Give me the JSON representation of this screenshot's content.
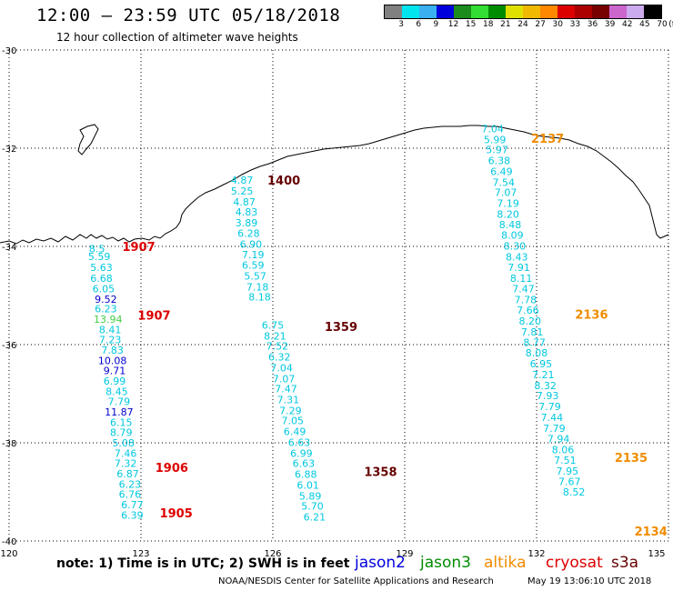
{
  "header": {
    "title": "12:00 — 23:59 UTC 05/18/2018",
    "subtitle": "12 hour collection of altimeter wave heights"
  },
  "legend": {
    "unit": "(ft)",
    "colors": [
      "#808080",
      "#00e5ee",
      "#3ab0f0",
      "#0000dd",
      "#1c8c1c",
      "#33dd33",
      "#008c00",
      "#e0e000",
      "#f0b800",
      "#ff8800",
      "#dd0000",
      "#aa0000",
      "#770000",
      "#cc66cc",
      "#ccaaee",
      "#000000"
    ],
    "labels": [
      "3",
      "6",
      "9",
      "12",
      "15",
      "18",
      "21",
      "24",
      "27",
      "30",
      "33",
      "36",
      "39",
      "42",
      "45",
      "70"
    ]
  },
  "map": {
    "lon_range": [
      120,
      135
    ],
    "lat_range": [
      -40,
      -30
    ],
    "lon_ticks": [
      "120",
      "123",
      "126",
      "129",
      "132",
      "135"
    ],
    "lat_ticks": [
      "-30",
      "-32",
      "-34",
      "-36",
      "-38",
      "-40"
    ]
  },
  "tracks": [
    {
      "name": "track-west",
      "color": "#00c8e0",
      "points": [
        {
          "lon": 122.0,
          "lat": -34.05,
          "v": "8.5"
        },
        {
          "lon": 122.05,
          "lat": -34.2,
          "v": "5.59"
        },
        {
          "lon": 122.1,
          "lat": -34.43,
          "v": "5.63"
        },
        {
          "lon": 122.1,
          "lat": -34.65,
          "v": "6.68"
        },
        {
          "lon": 122.15,
          "lat": -34.86,
          "v": "6.05"
        },
        {
          "lon": 122.2,
          "lat": -35.07,
          "v": "9.52",
          "c": "#0000cc"
        },
        {
          "lon": 122.2,
          "lat": -35.27,
          "v": "6.23"
        },
        {
          "lon": 122.25,
          "lat": -35.48,
          "v": "13.94",
          "c": "#44cc44"
        },
        {
          "lon": 122.3,
          "lat": -35.69,
          "v": "8.41"
        },
        {
          "lon": 122.3,
          "lat": -35.9,
          "v": "7.23"
        },
        {
          "lon": 122.35,
          "lat": -36.11,
          "v": "7.83"
        },
        {
          "lon": 122.35,
          "lat": -36.32,
          "v": "10.08",
          "c": "#0000cc"
        },
        {
          "lon": 122.4,
          "lat": -36.53,
          "v": "9.71",
          "c": "#0000cc"
        },
        {
          "lon": 122.4,
          "lat": -36.74,
          "v": "6.99"
        },
        {
          "lon": 122.45,
          "lat": -36.95,
          "v": "8.45"
        },
        {
          "lon": 122.5,
          "lat": -37.16,
          "v": "7.79"
        },
        {
          "lon": 122.5,
          "lat": -37.37,
          "v": "11.87",
          "c": "#0000cc"
        },
        {
          "lon": 122.55,
          "lat": -37.58,
          "v": "6.15"
        },
        {
          "lon": 122.55,
          "lat": -37.79,
          "v": "8.79"
        },
        {
          "lon": 122.6,
          "lat": -38.0,
          "v": "5.08"
        },
        {
          "lon": 122.65,
          "lat": -38.21,
          "v": "7.46"
        },
        {
          "lon": 122.65,
          "lat": -38.42,
          "v": "7.32"
        },
        {
          "lon": 122.7,
          "lat": -38.63,
          "v": "6.87"
        },
        {
          "lon": 122.75,
          "lat": -38.84,
          "v": "6.23"
        },
        {
          "lon": 122.75,
          "lat": -39.05,
          "v": "6.76"
        },
        {
          "lon": 122.8,
          "lat": -39.26,
          "v": "6.77"
        },
        {
          "lon": 122.8,
          "lat": -39.47,
          "v": "6.39"
        }
      ]
    },
    {
      "name": "track-middle",
      "color": "#00c8e0",
      "points": [
        {
          "lon": 125.3,
          "lat": -32.65,
          "v": "4.87"
        },
        {
          "lon": 125.3,
          "lat": -32.87,
          "v": "5.25"
        },
        {
          "lon": 125.35,
          "lat": -33.09,
          "v": "4.87"
        },
        {
          "lon": 125.4,
          "lat": -33.3,
          "v": "4.83"
        },
        {
          "lon": 125.4,
          "lat": -33.52,
          "v": "3.89"
        },
        {
          "lon": 125.45,
          "lat": -33.73,
          "v": "6.28"
        },
        {
          "lon": 125.5,
          "lat": -33.95,
          "v": "6.90"
        },
        {
          "lon": 125.55,
          "lat": -34.17,
          "v": "7.19"
        },
        {
          "lon": 125.55,
          "lat": -34.38,
          "v": "6.59"
        },
        {
          "lon": 125.6,
          "lat": -34.6,
          "v": "5.57"
        },
        {
          "lon": 125.65,
          "lat": -34.82,
          "v": "7.18"
        },
        {
          "lon": 125.7,
          "lat": -35.03,
          "v": "8.18"
        },
        {
          "lon": 126.0,
          "lat": -35.6,
          "v": "6.75"
        },
        {
          "lon": 126.05,
          "lat": -35.82,
          "v": "8.21"
        },
        {
          "lon": 126.1,
          "lat": -36.03,
          "v": "7.52"
        },
        {
          "lon": 126.15,
          "lat": -36.25,
          "v": "6.32"
        },
        {
          "lon": 126.2,
          "lat": -36.47,
          "v": "7.04"
        },
        {
          "lon": 126.25,
          "lat": -36.69,
          "v": "7.07"
        },
        {
          "lon": 126.3,
          "lat": -36.9,
          "v": "7.47"
        },
        {
          "lon": 126.35,
          "lat": -37.12,
          "v": "7.31"
        },
        {
          "lon": 126.4,
          "lat": -37.34,
          "v": "7.29"
        },
        {
          "lon": 126.45,
          "lat": -37.55,
          "v": "7.05"
        },
        {
          "lon": 126.5,
          "lat": -37.77,
          "v": "6.49"
        },
        {
          "lon": 126.6,
          "lat": -37.99,
          "v": "6.63"
        },
        {
          "lon": 126.65,
          "lat": -38.21,
          "v": "6.99"
        },
        {
          "lon": 126.7,
          "lat": -38.42,
          "v": "6.63"
        },
        {
          "lon": 126.75,
          "lat": -38.64,
          "v": "6.88"
        },
        {
          "lon": 126.8,
          "lat": -38.86,
          "v": "6.01"
        },
        {
          "lon": 126.85,
          "lat": -39.08,
          "v": "5.89"
        },
        {
          "lon": 126.9,
          "lat": -39.29,
          "v": "5.70"
        },
        {
          "lon": 126.95,
          "lat": -39.51,
          "v": "6.21"
        }
      ]
    },
    {
      "name": "track-east",
      "color": "#00c8e0",
      "points": [
        {
          "lon": 131.0,
          "lat": -31.6,
          "v": "7.04"
        },
        {
          "lon": 131.05,
          "lat": -31.82,
          "v": "5.99"
        },
        {
          "lon": 131.1,
          "lat": -32.03,
          "v": "5.97"
        },
        {
          "lon": 131.15,
          "lat": -32.25,
          "v": "6.38"
        },
        {
          "lon": 131.2,
          "lat": -32.47,
          "v": "6.49"
        },
        {
          "lon": 131.25,
          "lat": -32.69,
          "v": "7.54"
        },
        {
          "lon": 131.3,
          "lat": -32.9,
          "v": "7.07"
        },
        {
          "lon": 131.35,
          "lat": -33.12,
          "v": "7.19"
        },
        {
          "lon": 131.35,
          "lat": -33.34,
          "v": "8.20"
        },
        {
          "lon": 131.4,
          "lat": -33.56,
          "v": "8.48"
        },
        {
          "lon": 131.45,
          "lat": -33.77,
          "v": "8.09"
        },
        {
          "lon": 131.5,
          "lat": -33.99,
          "v": "8.30"
        },
        {
          "lon": 131.55,
          "lat": -34.21,
          "v": "8.43"
        },
        {
          "lon": 131.6,
          "lat": -34.43,
          "v": "7.91"
        },
        {
          "lon": 131.65,
          "lat": -34.65,
          "v": "8.11"
        },
        {
          "lon": 131.7,
          "lat": -34.86,
          "v": "7.47"
        },
        {
          "lon": 131.75,
          "lat": -35.08,
          "v": "7.78"
        },
        {
          "lon": 131.8,
          "lat": -35.3,
          "v": "7.66"
        },
        {
          "lon": 131.85,
          "lat": -35.52,
          "v": "8.20"
        },
        {
          "lon": 131.9,
          "lat": -35.74,
          "v": "7.81"
        },
        {
          "lon": 131.95,
          "lat": -35.95,
          "v": "8.77"
        },
        {
          "lon": 132.0,
          "lat": -36.17,
          "v": "8.08"
        },
        {
          "lon": 132.1,
          "lat": -36.39,
          "v": "6.95"
        },
        {
          "lon": 132.15,
          "lat": -36.61,
          "v": "7.21"
        },
        {
          "lon": 132.2,
          "lat": -36.83,
          "v": "8.32"
        },
        {
          "lon": 132.25,
          "lat": -37.04,
          "v": "7.93"
        },
        {
          "lon": 132.3,
          "lat": -37.26,
          "v": "7.79"
        },
        {
          "lon": 132.35,
          "lat": -37.48,
          "v": "7.44"
        },
        {
          "lon": 132.4,
          "lat": -37.7,
          "v": "7.79"
        },
        {
          "lon": 132.5,
          "lat": -37.92,
          "v": "7.94"
        },
        {
          "lon": 132.6,
          "lat": -38.14,
          "v": "8.06"
        },
        {
          "lon": 132.65,
          "lat": -38.35,
          "v": "7.51"
        },
        {
          "lon": 132.7,
          "lat": -38.57,
          "v": "7.95"
        },
        {
          "lon": 132.75,
          "lat": -38.79,
          "v": "7.67"
        },
        {
          "lon": 132.85,
          "lat": -39.0,
          "v": "8.52"
        }
      ]
    }
  ],
  "time_labels": [
    {
      "lon": 122.95,
      "lat": -34.0,
      "text": "1907",
      "color": "#dd0000"
    },
    {
      "lon": 123.3,
      "lat": -35.4,
      "text": "1907",
      "color": "#dd0000"
    },
    {
      "lon": 123.7,
      "lat": -38.5,
      "text": "1906",
      "color": "#dd0000"
    },
    {
      "lon": 123.8,
      "lat": -39.43,
      "text": "1905",
      "color": "#dd0000"
    },
    {
      "lon": 126.25,
      "lat": -32.65,
      "text": "1400",
      "color": "#660000"
    },
    {
      "lon": 127.55,
      "lat": -35.63,
      "text": "1359",
      "color": "#660000"
    },
    {
      "lon": 128.45,
      "lat": -38.58,
      "text": "1358",
      "color": "#660000"
    },
    {
      "lon": 132.25,
      "lat": -31.8,
      "text": "2137",
      "color": "#f08c00"
    },
    {
      "lon": 133.25,
      "lat": -35.38,
      "text": "2136",
      "color": "#f08c00"
    },
    {
      "lon": 134.15,
      "lat": -38.3,
      "text": "2135",
      "color": "#f08c00"
    },
    {
      "lon": 134.6,
      "lat": -39.8,
      "text": "2134",
      "color": "#f08c00"
    }
  ],
  "footer": {
    "note": "note:  1) Time is in UTC;  2) SWH is in feet",
    "satellites": [
      {
        "name": "jason2",
        "color": "#0000dd"
      },
      {
        "name": "jason3",
        "color": "#008c00"
      },
      {
        "name": "altika",
        "color": "#f08c00"
      },
      {
        "name": "cryosat",
        "color": "#dd0000"
      },
      {
        "name": "s3a",
        "color": "#660000"
      }
    ],
    "credit": "NOAA/NESDIS Center for Satellite Applications and Research",
    "generated": "May 19 13:06:10 UTC 2018"
  }
}
